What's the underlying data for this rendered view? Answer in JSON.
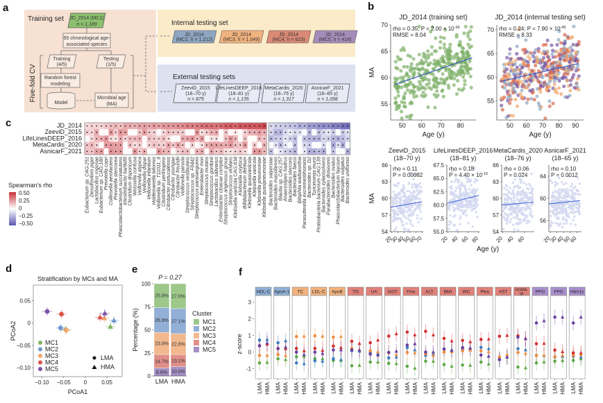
{
  "panel_labels": {
    "a": "a",
    "b": "b",
    "c": "c",
    "d": "d",
    "e": "e",
    "f": "f"
  },
  "panel_a": {
    "training_title": "Training set",
    "training_box": {
      "line1": "JD_2014 (MC1)",
      "line2": "n = 1,189"
    },
    "species_box": {
      "line1": "55 chronological age-",
      "line2": "associated species"
    },
    "cv_label": "Five-fold CV",
    "training_split": {
      "line1": "Training",
      "line2": "(4/5)"
    },
    "testing_split": {
      "line1": "Testing",
      "line2": "(1/5)"
    },
    "rf_box": {
      "line1": "Random forest",
      "line2": "modeling"
    },
    "model_label": "Model",
    "ma_box": {
      "line1": "Microbial age",
      "line2": "(MA)"
    },
    "internal_title": "Internal testing set",
    "internal_sets": [
      {
        "line1": "JD_2014",
        "line2": "(MC2, n = 1,212)",
        "color": "#8ea6c2"
      },
      {
        "line1": "JD_2014",
        "line2": "(MC3, n = 1,049)",
        "color": "#f0b27e"
      },
      {
        "line1": "JD_2014",
        "line2": "(MC4, n = 623)",
        "color": "#d98a76"
      },
      {
        "line1": "JD_2014",
        "line2": "(MC5, n = 418)",
        "color": "#a58dba"
      }
    ],
    "external_title": "External testing sets",
    "external_sets": [
      {
        "line1": "ZeeviD_2015",
        "line2": "(18–70 y)",
        "line3": "n = 875"
      },
      {
        "line1": "LifeLinesDEEP_2016",
        "line2": "(18–81 y)",
        "line3": "n = 1,135"
      },
      {
        "line1": "MetaCardis_2020",
        "line2": "(18–76 y)",
        "line3": "n = 1,317"
      },
      {
        "line1": "AsnicarF_2021",
        "line2": "(18–65 y)",
        "line3": "n = 1,098"
      }
    ]
  },
  "chart_data": [
    {
      "id": "b-training",
      "type": "scatter",
      "title": "JD_2014 (training set)",
      "xlabel": "Age (y)",
      "ylabel": "MA",
      "xlim": [
        44,
        88
      ],
      "ylim": [
        52,
        70
      ],
      "xticks": [
        50,
        60,
        70,
        80
      ],
      "yticks": [
        55,
        60,
        65,
        70
      ],
      "annotation": [
        "rho = 0.35; P = 2.00 × 10^-36",
        "RMSE = 8.04"
      ],
      "point_color": "#7fb069",
      "n_points_shown": 220,
      "trend": {
        "x": [
          46,
          86
        ],
        "y": [
          58.7,
          63.8
        ],
        "color": "#3b5bbf"
      }
    },
    {
      "id": "b-internal",
      "type": "scatter",
      "title": "JD_2014 (internal testing set)",
      "xlabel": "Age (y)",
      "ylabel": "",
      "xlim": [
        42,
        95
      ],
      "ylim": [
        51,
        71
      ],
      "xticks": [
        50,
        60,
        70,
        80,
        90
      ],
      "yticks": [
        55,
        60,
        65,
        70
      ],
      "annotation": [
        "rho = 0.24; P = 7.90 × 10^-45",
        "RMSE = 8.33"
      ],
      "point_colors": [
        "#8ea6c2",
        "#f0a86b",
        "#d9664e",
        "#7b5aa6"
      ],
      "n_points_shown": 260,
      "trend": {
        "x": [
          44,
          92
        ],
        "y": [
          59.1,
          62.9
        ],
        "color": "#3b5bbf"
      }
    },
    {
      "id": "b-zeevid",
      "type": "scatter",
      "title": "ZeeviD_2015",
      "subtitle": "(18–70 y)",
      "xlim": [
        18,
        72
      ],
      "ylim": [
        54,
        66
      ],
      "xticks": [
        20,
        30,
        40,
        50,
        60,
        70
      ],
      "yticks": [
        54,
        57,
        60,
        63,
        66
      ],
      "annotation": [
        "rho = 0.11",
        "P = 0.00082"
      ],
      "trend": {
        "x": [
          18,
          70
        ],
        "y": [
          58.4,
          59.4
        ]
      },
      "ylabel": "MA"
    },
    {
      "id": "b-lifelines",
      "type": "scatter",
      "title": "LifeLinesDEEP_2016",
      "subtitle": "(18–81 y)",
      "xlim": [
        18,
        82
      ],
      "ylim": [
        55,
        67.5
      ],
      "xticks": [
        20,
        40,
        60,
        80
      ],
      "yticks": [
        55.0,
        57.5,
        60.0,
        62.5,
        65.0,
        67.5
      ],
      "annotation": [
        "rho = 0.18",
        "P = 4.40 × 10^-10"
      ],
      "trend": {
        "x": [
          18,
          81
        ],
        "y": [
          60.3,
          61.8
        ]
      }
    },
    {
      "id": "b-metacardis",
      "type": "scatter",
      "title": "MetaCardis_2020",
      "subtitle": "(18–76 y)",
      "xlim": [
        18,
        78
      ],
      "ylim": [
        54,
        66
      ],
      "xticks": [
        20,
        40,
        60
      ],
      "yticks": [
        54,
        57,
        60,
        63,
        66
      ],
      "annotation": [
        "rho = 0.06",
        "P = 0.024"
      ],
      "trend": {
        "x": [
          18,
          76
        ],
        "y": [
          58.8,
          59.3
        ]
      }
    },
    {
      "id": "b-asnicar",
      "type": "scatter",
      "title": "AsnicarF_2021",
      "subtitle": "(18–65 y)",
      "xlim": [
        18,
        67
      ],
      "ylim": [
        54,
        66
      ],
      "xticks": [
        20,
        30,
        40,
        50,
        60
      ],
      "yticks": [
        56,
        60,
        64
      ],
      "annotation": [
        "rho = 0.10",
        "P = 0.0012"
      ],
      "trend": {
        "x": [
          18,
          65
        ],
        "y": [
          59.0,
          59.6
        ]
      }
    },
    {
      "id": "c-heatmap",
      "type": "heatmap",
      "rows": [
        "JD_2014",
        "ZeeviD_2015",
        "LifeLinesDEEP_2016",
        "MetaCardis_2020",
        "AsnicarF_2021"
      ],
      "columns_positive": [
        "Eubacterium sp. CAG:251",
        "Desulfovibrio piger",
        "Lactobacillus rogosae",
        "Eubacterium sp. CAG:180",
        "Prevotella copri",
        "Collinsella aerofaciens",
        "Prevotella stercorea",
        "Phascolarctobacterium succinatutens",
        "Intestinibacter bartlettii",
        "Clostridium disporicum",
        "Weissella confusa",
        "Veillonella atypica",
        "Veillonella dispar",
        "Veillonella infantium",
        "Holdemanella biformis",
        "Veillonella sp. T11011_6",
        "Clostridium perfringens",
        "Citrobacter portucalensis",
        "Citrobacter youngae",
        "Citrobacter freundii",
        "Veillonella parvula",
        "Streptococcus vestibularis",
        "Streptococcus sp. F0442",
        "Streptococcus parasanguinis",
        "Enterobacter mori",
        "Streptococcus mutans",
        "Streptococcus gordonii",
        "Lactobacillus salivarius",
        "Enterobacter cloacae complex",
        "Streptococcus anginosus group",
        "Streptococcus viridans",
        "Klebsiella variicola CAG:634",
        "Klebsiella oxytoca",
        "Bifidobacterium dentium",
        "Klebsiella quasivariicola",
        "Klebsiella variicola",
        "Klebsiella pneumoniae",
        "Klebsiella quasipneumoniae"
      ],
      "columns_negative": [
        "Bacteroides salyersiae",
        "Bacteroides massiliensis",
        "Blautia sp. CAG:257",
        "Anaerostipes hadrus",
        "Bacteroides stercoris",
        "Bacteroides faecis",
        "Bilophila wadsworthia",
        "Parasutterella excrementihominis",
        "Bacteroides sp. D2",
        "Turicimonas muris",
        "Proteobacteria bacterium CAG:139",
        "Bacteroides xylanisolvens",
        "Parabacteroides distasonis",
        "Bacteroides ovatus",
        "Phascolarctobacterium faecium",
        "Bacteroides vulgatus",
        "Bacteroides uniformis"
      ],
      "legend": {
        "title": "Spearman's rho",
        "ticks": [
          "0.50",
          "0.25",
          "0",
          "−0.25",
          "−0.50"
        ],
        "range": [
          -0.5,
          0.5
        ],
        "high_color": "#c8323a",
        "mid_color": "#ffffff",
        "low_color": "#5b57b0"
      },
      "significance_marker": "•"
    },
    {
      "id": "d-pcoa",
      "type": "scatter",
      "title": "Stratification by MCs and MA",
      "xlabel": "PCoA1",
      "ylabel": "PCoA2",
      "xlim": [
        -0.12,
        0.085
      ],
      "ylim": [
        -0.12,
        0.085
      ],
      "xticks": [
        -0.1,
        -0.05,
        0,
        0.05
      ],
      "xticklabels": [
        "−0.10",
        "−0.05",
        "0",
        "0.05"
      ],
      "yticks": [
        0.05,
        0,
        -0.05,
        -0.1
      ],
      "yticklabels": [
        "0.05",
        "0",
        "−0.05",
        "−0.10"
      ],
      "series": [
        {
          "name": "MC1",
          "color": "#7fb561",
          "LMA": [
            -0.045,
            -0.015
          ],
          "HMA": [
            0.058,
            -0.008
          ]
        },
        {
          "name": "MC2",
          "color": "#6f98cf",
          "LMA": [
            -0.057,
            -0.011
          ],
          "HMA": [
            0.066,
            0.006
          ]
        },
        {
          "name": "MC3",
          "color": "#f0a76a",
          "LMA": [
            -0.044,
            -0.016
          ],
          "HMA": [
            0.044,
            0.011
          ]
        },
        {
          "name": "MC4",
          "color": "#d9534a",
          "LMA": [
            -0.055,
            0.02
          ],
          "HMA": [
            0.034,
            0.013
          ]
        },
        {
          "name": "MC5",
          "color": "#7c55a8",
          "LMA": [
            -0.088,
            0.026
          ],
          "HMA": [
            0.045,
            0.022
          ]
        }
      ],
      "shape_legend": [
        {
          "shape": "circle",
          "label": "LMA"
        },
        {
          "shape": "triangle",
          "label": "HMA"
        }
      ]
    },
    {
      "id": "e-stacked",
      "type": "bar",
      "title": "P = 0.27",
      "ylabel": "Percentage (%)",
      "categories": [
        "LMA",
        "HMA"
      ],
      "ylim": [
        0,
        100
      ],
      "yticks": [
        0,
        25,
        50,
        75,
        100
      ],
      "legend_title": "Cluster",
      "series": [
        {
          "name": "MC5",
          "color": "#a48fc4",
          "values": [
            8.6,
            10.0
          ],
          "labels": [
            "8.6%",
            "10.0%"
          ]
        },
        {
          "name": "MC4",
          "color": "#e08f88",
          "values": [
            14.7,
            13.1
          ],
          "labels": [
            "14.7%",
            "13.1%"
          ]
        },
        {
          "name": "MC3",
          "color": "#f2b88e",
          "values": [
            23.9,
            22.8
          ],
          "labels": [
            "23.9%",
            "22.8%"
          ]
        },
        {
          "name": "MC2",
          "color": "#92afd7",
          "values": [
            26.9,
            27.1
          ],
          "labels": [
            "26.9%",
            "27.1%"
          ]
        },
        {
          "name": "MC1",
          "color": "#9dc88a",
          "values": [
            25.9,
            27.0
          ],
          "labels": [
            "25.9%",
            "27.0%"
          ]
        }
      ]
    },
    {
      "id": "f-zscores",
      "type": "scatter",
      "ylabel": "z-score",
      "ylim": [
        -1.6,
        3.4
      ],
      "yticks": [
        -1,
        0,
        1,
        2,
        3
      ],
      "group_labels": [
        "LMA",
        "HMA"
      ],
      "series_colors": {
        "MC1": "#5da845",
        "MC2": "#3f7cc2",
        "MC3": "#ef8c3c",
        "MC4": "#d1302f",
        "MC5": "#6b3fa0"
      },
      "panels": [
        {
          "name": "HDL-C",
          "color": "#8fb0d6",
          "LMA": {
            "MC1": -0.65,
            "MC2": 0.72,
            "MC3": -0.2,
            "MC4": 0.38,
            "MC5": 0.38
          },
          "HMA": {
            "MC1": -0.62,
            "MC2": 0.75,
            "MC3": -0.2,
            "MC4": 0.48,
            "MC5": 0.55
          }
        },
        {
          "name": "ApoA-1",
          "color": "#8fb0d6",
          "LMA": {
            "MC1": -0.4,
            "MC2": 0.56,
            "MC3": -0.15,
            "MC4": 0.2,
            "MC5": 0.22
          },
          "HMA": {
            "MC1": -0.45,
            "MC2": 0.68,
            "MC3": -0.22,
            "MC4": 0.2,
            "MC5": 0.3
          }
        },
        {
          "name": "TC",
          "color": "#f2b27d",
          "LMA": {
            "MC1": -0.28,
            "MC2": -0.65,
            "MC3": 0.93,
            "MC4": 0.22,
            "MC5": 0.0
          },
          "HMA": {
            "MC1": -0.25,
            "MC2": -0.7,
            "MC3": 0.95,
            "MC4": 0.07,
            "MC5": -0.15
          }
        },
        {
          "name": "LDL-C",
          "color": "#f2b27d",
          "LMA": {
            "MC1": -0.4,
            "MC2": -0.52,
            "MC3": 0.98,
            "MC4": 0.22,
            "MC5": 0.0
          },
          "HMA": {
            "MC1": -0.4,
            "MC2": -0.55,
            "MC3": 0.95,
            "MC4": 0.1,
            "MC5": -0.08
          }
        },
        {
          "name": "ApoB",
          "color": "#f2b27d",
          "LMA": {
            "MC1": -0.5,
            "MC2": -0.4,
            "MC3": 0.9,
            "MC4": 0.36,
            "MC5": 0.13
          },
          "HMA": {
            "MC1": -0.5,
            "MC2": -0.45,
            "MC3": 0.93,
            "MC4": 0.27,
            "MC5": 0.13
          }
        },
        {
          "name": "TG",
          "color": "#e0817a",
          "LMA": {
            "MC1": -0.82,
            "MC2": 0.08,
            "MC3": 0.22,
            "MC4": 0.65,
            "MC5": 0.13
          },
          "HMA": {
            "MC1": -0.8,
            "MC2": 0.05,
            "MC3": 0.15,
            "MC4": 0.52,
            "MC5": 0.12
          }
        },
        {
          "name": "UA",
          "color": "#e0817a",
          "LMA": {
            "MC1": -0.6,
            "MC2": -0.05,
            "MC3": 0.08,
            "MC4": 0.56,
            "MC5": -0.12
          },
          "HMA": {
            "MC1": -0.6,
            "MC2": -0.1,
            "MC3": 0.02,
            "MC4": 0.72,
            "MC5": -0.18
          }
        },
        {
          "name": "GGT",
          "color": "#e0817a",
          "LMA": {
            "MC1": -0.68,
            "MC2": -0.35,
            "MC3": -0.05,
            "MC4": 0.96,
            "MC5": -0.02
          },
          "HMA": {
            "MC1": -0.7,
            "MC2": -0.3,
            "MC3": -0.15,
            "MC4": 1.1,
            "MC5": 0.05
          }
        },
        {
          "name": "Fins",
          "color": "#e0817a",
          "LMA": {
            "MC1": -0.85,
            "MC2": 0.27,
            "MC3": -0.02,
            "MC4": 1.2,
            "MC5": 0.42
          },
          "HMA": {
            "MC1": -0.97,
            "MC2": 0.13,
            "MC3": -0.05,
            "MC4": 1.03,
            "MC5": 0.5
          }
        },
        {
          "name": "ALT",
          "color": "#e0817a",
          "LMA": {
            "MC1": -0.55,
            "MC2": -0.2,
            "MC3": -0.1,
            "MC4": 1.25,
            "MC5": 0.0
          },
          "HMA": {
            "MC1": -0.55,
            "MC2": -0.12,
            "MC3": -0.2,
            "MC4": 1.03,
            "MC5": 0.0
          }
        },
        {
          "name": "BMI",
          "color": "#e0817a",
          "LMA": {
            "MC1": -0.75,
            "MC2": 0.18,
            "MC3": 0.0,
            "MC4": 0.82,
            "MC5": 0.18
          },
          "HMA": {
            "MC1": -0.85,
            "MC2": 0.14,
            "MC3": 0.02,
            "MC4": 0.67,
            "MC5": 0.1
          }
        },
        {
          "name": "WC",
          "color": "#e0817a",
          "LMA": {
            "MC1": -0.78,
            "MC2": 0.18,
            "MC3": 0.08,
            "MC4": 0.7,
            "MC5": 0.27
          },
          "HMA": {
            "MC1": -0.8,
            "MC2": 0.2,
            "MC3": 0.12,
            "MC4": 0.62,
            "MC5": 0.25
          }
        },
        {
          "name": "Pins",
          "color": "#e0817a",
          "LMA": {
            "MC1": -0.6,
            "MC2": 0.28,
            "MC3": 0.08,
            "MC4": 0.76,
            "MC5": -0.18
          },
          "HMA": {
            "MC1": -0.72,
            "MC2": 0.2,
            "MC3": 0.02,
            "MC4": 0.78,
            "MC5": -0.25
          }
        },
        {
          "name": "AST",
          "color": "#e0817a",
          "LMA": {
            "MC1": -0.45,
            "MC2": -0.45,
            "MC3": -0.3,
            "MC4": 0.95,
            "MC5": -0.45
          },
          "HMA": {
            "MC1": -0.3,
            "MC2": -0.3,
            "MC3": -0.15,
            "MC4": 1.0,
            "MC5": -0.3
          }
        },
        {
          "name": "HOMA-IR",
          "color": "#e0817a",
          "LMA": {
            "MC1": -0.9,
            "MC2": 0.2,
            "MC3": -0.02,
            "MC4": 0.98,
            "MC5": 0.9
          },
          "HMA": {
            "MC1": -0.95,
            "MC2": 0.13,
            "MC3": -0.08,
            "MC4": 0.82,
            "MC5": 0.8
          }
        },
        {
          "name": "PPG",
          "color": "#a98fcd",
          "LMA": {
            "MC1": -0.65,
            "MC2": -0.2,
            "MC3": -0.2,
            "MC4": 0.5,
            "MC5": 1.75
          },
          "HMA": {
            "MC1": -0.6,
            "MC2": -0.2,
            "MC3": -0.18,
            "MC4": 0.52,
            "MC5": 1.88
          }
        },
        {
          "name": "FPG",
          "color": "#a98fcd",
          "LMA": {
            "MC1": -0.55,
            "MC2": -0.3,
            "MC3": -0.28,
            "MC4": 0.12,
            "MC5": 2.1
          },
          "HMA": {
            "MC1": -0.5,
            "MC2": -0.25,
            "MC3": -0.2,
            "MC4": 0.02,
            "MC5": 2.1
          }
        },
        {
          "name": "HbA1c",
          "color": "#a98fcd",
          "LMA": {
            "MC1": -0.5,
            "MC2": -0.25,
            "MC3": -0.2,
            "MC4": -0.05,
            "MC5": 1.75
          },
          "HMA": {
            "MC1": -0.4,
            "MC2": -0.3,
            "MC3": -0.15,
            "MC4": -0.05,
            "MC5": 2.1
          }
        }
      ]
    }
  ]
}
